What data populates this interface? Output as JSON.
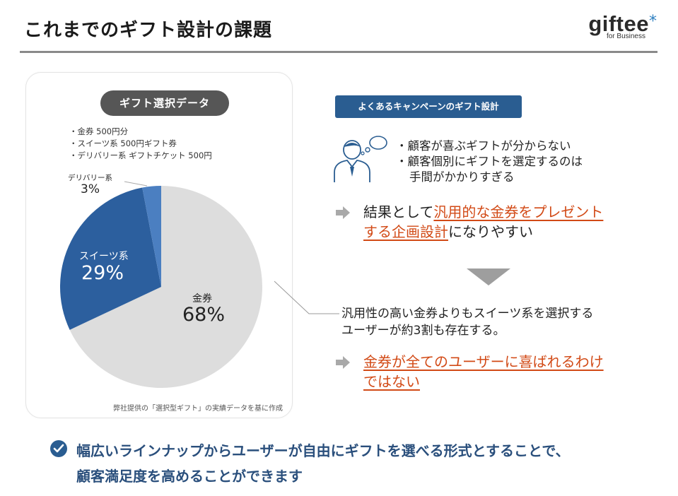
{
  "header": {
    "title": "これまでのギフト設計の課題",
    "logo_text": "giftee",
    "logo_star": "*",
    "logo_sub": "for Business"
  },
  "left_panel": {
    "pill": "ギフト選択データ",
    "bullets": [
      "・金券 500円分",
      "・スイーツ系 500円ギフト券",
      "・デリバリー系 ギフトチケット 500円"
    ],
    "source": "弊社提供の「選択型ギフト」の実績データを基に作成"
  },
  "chart_data": {
    "type": "pie",
    "slices": [
      {
        "name": "金券",
        "value": 68,
        "label": "68%",
        "color": "#dddddd"
      },
      {
        "name": "スイーツ系",
        "value": 29,
        "label": "29%",
        "color": "#2c5f9e"
      },
      {
        "name": "デリバリー系",
        "value": 3,
        "label": "3%",
        "color": "#4b7fc1"
      }
    ]
  },
  "right_panel": {
    "tag": "よくあるキャンペーンのギフト設計",
    "issues": {
      "i1": "・顧客が喜ぶギフトが分からない",
      "i2": "・顧客個別にギフトを選定するのは",
      "i2b": "手間がかかりすぎる"
    },
    "result": {
      "pre": "結果として",
      "hl1": "汎用的な金券をプレゼント",
      "hl2": "する企画設計",
      "post": "になりやすい"
    },
    "middle": {
      "l1": "汎用性の高い金券よりもスイーツ系を選択する",
      "l2": "ユーザーが約3割も存在する。"
    },
    "conclusion": {
      "l1": "金券が全てのユーザーに喜ばれるわけ",
      "l2": "ではない"
    }
  },
  "bottom": {
    "l1": "幅広いラインナップからユーザーが自由にギフトを選べる形式とすることで、",
    "l2": "顧客満足度を高めることができます"
  },
  "colors": {
    "accent_blue": "#2a5d91",
    "highlight_orange": "#d24a16",
    "bottom_text": "#2a4f7c"
  }
}
